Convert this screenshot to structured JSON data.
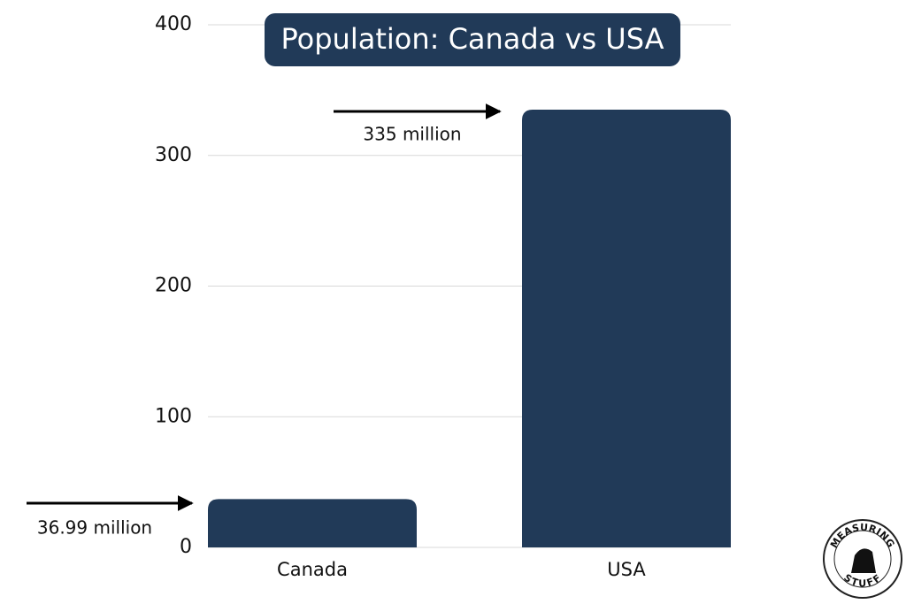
{
  "chart_data": {
    "type": "bar",
    "title": "Population: Canada vs USA",
    "categories": [
      "Canada",
      "USA"
    ],
    "values": [
      36.99,
      335
    ],
    "value_labels": [
      "36.99 million",
      "335 million"
    ],
    "color": "#213a58",
    "ylim": [
      0,
      400
    ],
    "yticks": [
      0,
      100,
      200,
      300,
      400
    ],
    "grid": true
  },
  "logo": {
    "top": "MEASURING",
    "bottom": "STUFF"
  }
}
